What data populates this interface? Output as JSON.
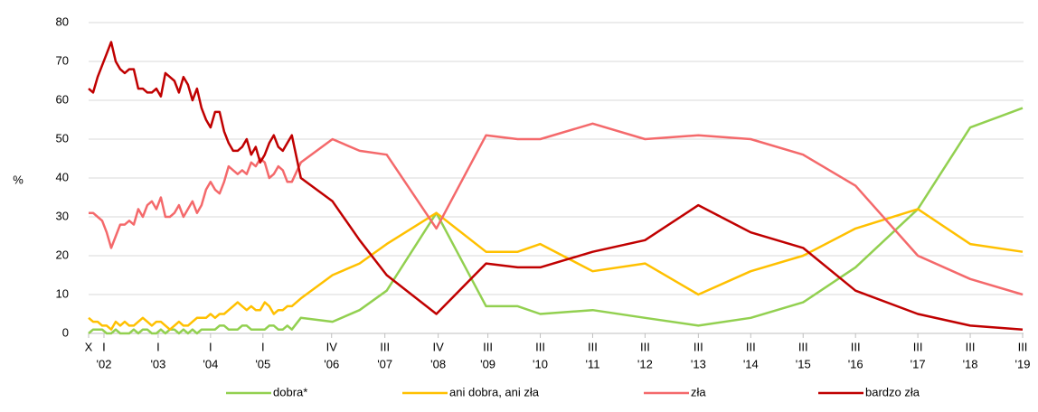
{
  "chart_data": {
    "type": "line",
    "ylabel": "%",
    "x": [
      0,
      1,
      2,
      3,
      4,
      5,
      6,
      7,
      8,
      9,
      10,
      11,
      12,
      13,
      14,
      15,
      16,
      17,
      18,
      19,
      20,
      21,
      22,
      23,
      24,
      25,
      26,
      27,
      28,
      29,
      30,
      31,
      32,
      33,
      34,
      35,
      36,
      37,
      38,
      39,
      40,
      41,
      42,
      43,
      44,
      45,
      47,
      54,
      60,
      66,
      77,
      88,
      95,
      100,
      111.6,
      123.2,
      135,
      146.6,
      158.2,
      169.8,
      183.6,
      195.2,
      206.8
    ],
    "xlim": [
      0,
      207
    ],
    "xticks": [
      {
        "value": 0,
        "label": "X"
      },
      {
        "value": 3.4,
        "label": "I",
        "year": "'02"
      },
      {
        "value": 15.4,
        "label": "I",
        "year": "'03"
      },
      {
        "value": 27,
        "label": "I",
        "year": "'04"
      },
      {
        "value": 38.6,
        "label": "I",
        "year": "'05"
      },
      {
        "value": 53.8,
        "label": "IV",
        "year": "'06"
      },
      {
        "value": 65.6,
        "label": "III",
        "year": "'07"
      },
      {
        "value": 77.4,
        "label": "IV",
        "year": "'08"
      },
      {
        "value": 88.4,
        "label": "III",
        "year": "'09"
      },
      {
        "value": 100,
        "label": "III",
        "year": "'10"
      },
      {
        "value": 111.6,
        "label": "III",
        "year": "'11"
      },
      {
        "value": 123.2,
        "label": "III",
        "year": "'12"
      },
      {
        "value": 135,
        "label": "III",
        "year": "'13"
      },
      {
        "value": 146.6,
        "label": "III",
        "year": "'14"
      },
      {
        "value": 158.2,
        "label": "III",
        "year": "'15"
      },
      {
        "value": 169.8,
        "label": "III",
        "year": "'16"
      },
      {
        "value": 183.6,
        "label": "III",
        "year": "'17"
      },
      {
        "value": 195.2,
        "label": "III",
        "year": "'18"
      },
      {
        "value": 206.8,
        "label": "III",
        "year": "'19"
      }
    ],
    "ylim": [
      0,
      80
    ],
    "yticks": [
      0,
      10,
      20,
      30,
      40,
      50,
      60,
      70,
      80
    ],
    "grid": true,
    "legend": "bottom",
    "series": [
      {
        "name": "dobra*",
        "color": "#92d050",
        "values": [
          0,
          1,
          1,
          1,
          0,
          0,
          1,
          0,
          0,
          0,
          1,
          0,
          1,
          1,
          0,
          0,
          1,
          0,
          1,
          1,
          0,
          1,
          0,
          1,
          0,
          1,
          1,
          1,
          1,
          2,
          2,
          1,
          1,
          1,
          2,
          2,
          1,
          1,
          1,
          1,
          2,
          2,
          1,
          1,
          2,
          1,
          4,
          3,
          6,
          11,
          31,
          7,
          7,
          5,
          6,
          4,
          2,
          4,
          8,
          17,
          32,
          53,
          58
        ]
      },
      {
        "name": "ani dobra, ani zła",
        "color": "#ffc000",
        "values": [
          4,
          3,
          3,
          2,
          2,
          1,
          3,
          2,
          3,
          2,
          2,
          3,
          4,
          3,
          2,
          3,
          3,
          2,
          1,
          2,
          3,
          2,
          2,
          3,
          4,
          4,
          4,
          5,
          4,
          5,
          5,
          6,
          7,
          8,
          7,
          6,
          7,
          6,
          6,
          8,
          7,
          5,
          6,
          6,
          7,
          7,
          9,
          15,
          18,
          23,
          31,
          21,
          21,
          23,
          16,
          18,
          10,
          16,
          20,
          27,
          32,
          23,
          21
        ]
      },
      {
        "name": "zła",
        "color": "#f4696b",
        "values": [
          31,
          31,
          30,
          29,
          26,
          22,
          25,
          28,
          28,
          29,
          28,
          32,
          30,
          33,
          34,
          32,
          35,
          30,
          30,
          31,
          33,
          30,
          32,
          34,
          31,
          33,
          37,
          39,
          37,
          36,
          39,
          43,
          42,
          41,
          42,
          41,
          44,
          43,
          45,
          44,
          40,
          41,
          43,
          42,
          39,
          39,
          44,
          50,
          47,
          46,
          27,
          51,
          50,
          50,
          54,
          50,
          51,
          50,
          46,
          38,
          20,
          14,
          10
        ]
      },
      {
        "name": "bardzo zła",
        "color": "#c00000",
        "values": [
          63,
          62,
          66,
          69,
          72,
          75,
          70,
          68,
          67,
          68,
          68,
          63,
          63,
          62,
          62,
          63,
          61,
          67,
          66,
          65,
          62,
          66,
          64,
          60,
          63,
          58,
          55,
          53,
          57,
          57,
          52,
          49,
          47,
          47,
          48,
          50,
          46,
          48,
          44,
          46,
          49,
          51,
          48,
          47,
          49,
          51,
          40,
          34,
          24,
          15,
          5,
          18,
          17,
          17,
          21,
          24,
          33,
          26,
          22,
          11,
          5,
          2,
          1
        ]
      }
    ]
  }
}
